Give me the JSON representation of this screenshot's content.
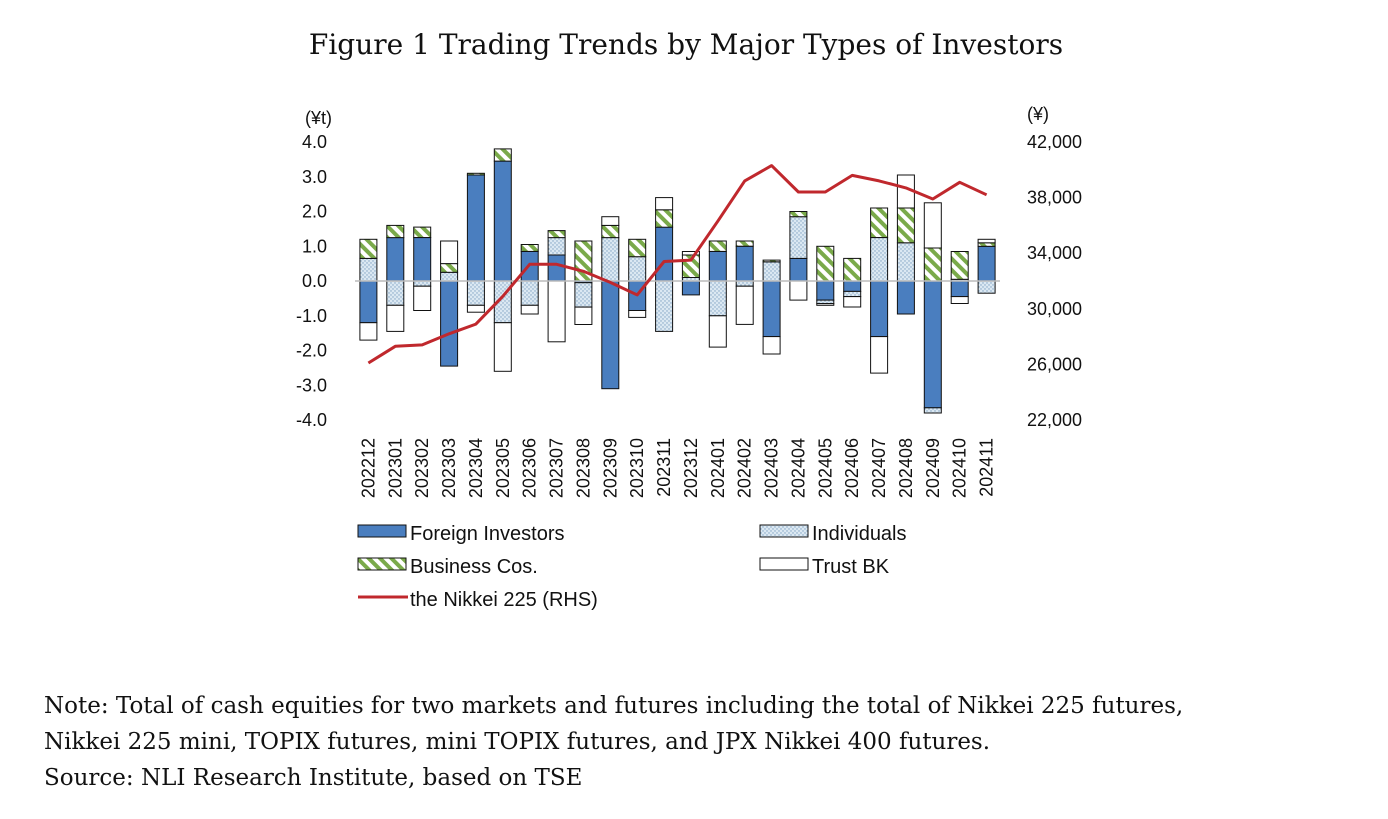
{
  "chart_data": {
    "type": "bar",
    "title": "Figure 1 Trading Trends by Major Types of Investors",
    "left_axis_unit": "(¥t)",
    "right_axis_unit": "(¥)",
    "ylim": [
      -4.0,
      4.0
    ],
    "y_ticks": [
      "4.0",
      "3.0",
      "2.0",
      "1.0",
      "0.0",
      "-1.0",
      "-2.0",
      "-3.0",
      "-4.0"
    ],
    "y2lim": [
      22000,
      42000
    ],
    "y2_ticks": [
      "42,000",
      "38,000",
      "34,000",
      "30,000",
      "26,000",
      "22,000"
    ],
    "categories": [
      "202212",
      "202301",
      "202302",
      "202303",
      "202304",
      "202305",
      "202306",
      "202307",
      "202308",
      "202309",
      "202310",
      "202311",
      "202312",
      "202401",
      "202402",
      "202403",
      "202404",
      "202405",
      "202406",
      "202407",
      "202408",
      "202409",
      "202410",
      "202411"
    ],
    "series": [
      {
        "name": "Foreign Investors",
        "key": "foreign",
        "color": "#4a7ebf",
        "values": [
          -1.2,
          1.25,
          1.25,
          -2.45,
          3.05,
          3.45,
          0.85,
          0.75,
          -0.05,
          -3.1,
          -0.85,
          1.55,
          -0.4,
          0.85,
          1.0,
          -1.6,
          0.65,
          -0.55,
          -0.3,
          -1.6,
          -0.95,
          -3.65,
          -0.45,
          1.0
        ]
      },
      {
        "name": "Individuals",
        "key": "individuals",
        "color": "#cfe0ec",
        "values": [
          0.65,
          -0.7,
          -0.15,
          0.25,
          -0.7,
          -1.2,
          -0.7,
          0.5,
          -0.7,
          1.25,
          0.7,
          -1.45,
          0.1,
          -1.0,
          -0.15,
          0.55,
          1.2,
          -0.1,
          -0.15,
          1.25,
          1.1,
          -0.15,
          0.05,
          -0.35
        ]
      },
      {
        "name": "Business Cos.",
        "key": "business",
        "color": "#7aaa4a",
        "values": [
          0.55,
          0.35,
          0.3,
          0.25,
          0.05,
          0.35,
          0.2,
          0.2,
          1.15,
          0.35,
          0.5,
          0.5,
          0.65,
          0.3,
          0.15,
          0.05,
          0.15,
          1.0,
          0.65,
          0.85,
          1.0,
          0.95,
          0.8,
          0.1
        ]
      },
      {
        "name": "Trust BK",
        "key": "trust",
        "color": "#ffffff",
        "values": [
          -0.5,
          -0.75,
          -0.7,
          0.65,
          -0.2,
          -1.4,
          -0.25,
          -1.75,
          -0.5,
          0.25,
          -0.2,
          0.35,
          0.1,
          -0.9,
          -1.1,
          -0.5,
          -0.55,
          -0.05,
          -0.3,
          -1.05,
          0.95,
          1.3,
          -0.2,
          0.1
        ]
      }
    ],
    "line_series": {
      "name": "the Nikkei 225 (RHS)",
      "color": "#c0282d",
      "values": [
        26100,
        27300,
        27400,
        28200,
        28900,
        30900,
        33200,
        33200,
        32700,
        31900,
        31000,
        33400,
        33500,
        36300,
        39200,
        40300,
        38400,
        38400,
        39600,
        39200,
        38700,
        37900,
        39100,
        38200
      ]
    },
    "legend": [
      {
        "label": "Foreign Investors",
        "key": "foreign"
      },
      {
        "label": "Individuals",
        "key": "individuals"
      },
      {
        "label": "Business Cos.",
        "key": "business"
      },
      {
        "label": "Trust BK",
        "key": "trust"
      },
      {
        "label": "the Nikkei 225 (RHS)",
        "key": "nikkei"
      }
    ],
    "legend_position": "bottom",
    "grid": false
  },
  "notes": {
    "line1": "Note: Total of cash equities for two markets and futures including the total of Nikkei 225 futures,",
    "line2": "Nikkei 225 mini, TOPIX futures, mini TOPIX futures, and JPX Nikkei 400 futures.",
    "line3": "Source: NLI Research Institute, based on TSE"
  }
}
